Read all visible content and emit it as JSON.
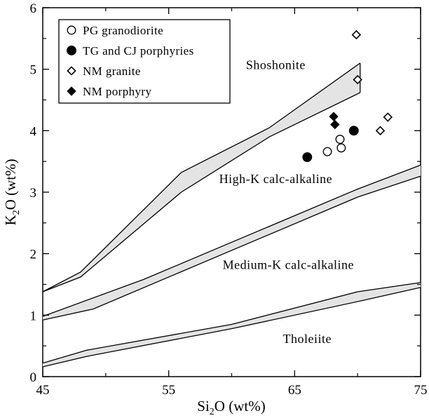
{
  "chart_data": {
    "type": "scatter",
    "xlim": [
      45,
      75
    ],
    "ylim": [
      0,
      6
    ],
    "x_ticks": [
      "45",
      "55",
      "65",
      "75"
    ],
    "y_ticks": [
      "0",
      "1",
      "2",
      "3",
      "4",
      "5",
      "6"
    ],
    "xlabel": {
      "pre": "Si",
      "sub": "2",
      "post": "O (wt%)"
    },
    "ylabel": {
      "pre": "K",
      "sub": "2",
      "post": "O (wt%)"
    },
    "grid": false,
    "legend_position": "top-left",
    "fields": [
      {
        "name": "Shoshonite",
        "x": 63.5,
        "y": 5.0
      },
      {
        "name": "High-K calc-alkaline",
        "x": 63.5,
        "y": 3.15
      },
      {
        "name": "Medium-K calc-alkaline",
        "x": 64.5,
        "y": 1.75
      },
      {
        "name": "Tholeiite",
        "x": 66,
        "y": 0.55
      }
    ],
    "boundaries": [
      {
        "upper": [
          [
            45,
            1.38
          ],
          [
            48,
            1.7
          ],
          [
            56,
            3.32
          ],
          [
            63,
            4.05
          ],
          [
            70.2,
            5.1
          ]
        ],
        "lower": [
          [
            45,
            1.38
          ],
          [
            48,
            1.62
          ],
          [
            56,
            3.0
          ],
          [
            63,
            3.9
          ],
          [
            70.2,
            4.62
          ]
        ]
      },
      {
        "upper": [
          [
            45,
            0.98
          ],
          [
            53,
            1.58
          ],
          [
            70,
            3.05
          ],
          [
            75,
            3.44
          ]
        ],
        "lower": [
          [
            45,
            0.92
          ],
          [
            49,
            1.1
          ],
          [
            70,
            2.92
          ],
          [
            75,
            3.26
          ]
        ]
      },
      {
        "upper": [
          [
            45,
            0.22
          ],
          [
            48.5,
            0.43
          ],
          [
            60,
            0.85
          ],
          [
            70,
            1.38
          ],
          [
            75,
            1.53
          ]
        ],
        "lower": [
          [
            45,
            0.16
          ],
          [
            48.5,
            0.33
          ],
          [
            60,
            0.78
          ],
          [
            70,
            1.22
          ],
          [
            75,
            1.45
          ]
        ]
      }
    ],
    "series": [
      {
        "name": "PG granodiorite",
        "marker": "open-circle",
        "points": [
          [
            67.6,
            3.66
          ],
          [
            68.6,
            3.86
          ],
          [
            68.7,
            3.72
          ]
        ]
      },
      {
        "name": "TG and CJ porphyries",
        "marker": "filled-circle",
        "points": [
          [
            66.0,
            3.57
          ],
          [
            69.7,
            4.0
          ]
        ]
      },
      {
        "name": "NM granite",
        "marker": "open-diamond",
        "points": [
          [
            69.9,
            5.56
          ],
          [
            70.0,
            4.83
          ],
          [
            71.8,
            4.0
          ],
          [
            72.4,
            4.22
          ]
        ]
      },
      {
        "name": "NM porphyry",
        "marker": "filled-diamond",
        "points": [
          [
            68.1,
            4.23
          ],
          [
            68.2,
            4.1
          ]
        ]
      }
    ],
    "band_fill": "#e4e4e4",
    "line_color": "#000000"
  }
}
